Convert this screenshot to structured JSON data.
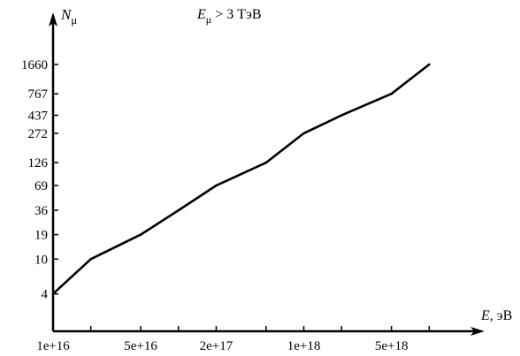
{
  "chart_data": {
    "type": "line",
    "title": "E_μ > 3 ТэВ",
    "title_parts": {
      "var": "E",
      "sub": "μ",
      "rest": " > 3 ТэВ"
    },
    "xlabel": "E, эВ",
    "xlabel_parts": {
      "var": "E",
      "rest": ", эВ"
    },
    "ylabel": "N_μ",
    "ylabel_parts": {
      "var": "N",
      "sub": "μ"
    },
    "x_ticks": [
      "1e+16",
      "5e+16",
      "2e+17",
      "1e+18",
      "5e+18"
    ],
    "x_tick_values": [
      1e+16,
      5e+16,
      2e+17,
      1e+18,
      5e+18
    ],
    "y_ticks": [
      "4",
      "10",
      "19",
      "36",
      "69",
      "126",
      "272",
      "437",
      "767",
      "1660"
    ],
    "y_tick_values": [
      4,
      10,
      19,
      36,
      69,
      126,
      272,
      437,
      767,
      1660
    ],
    "x_scale": "log",
    "y_scale": "log",
    "xlim": [
      1e+16,
      2e+19
    ],
    "ylim": [
      1.5,
      4500
    ],
    "grid": false,
    "series": [
      {
        "x": [
          1e+16,
          2e+16,
          5e+16,
          1e+17,
          2e+17,
          5e+17,
          1e+18,
          2e+18,
          5e+18,
          1e+19
        ],
        "y": [
          4,
          10,
          19,
          36,
          69,
          126,
          272,
          437,
          767,
          1660
        ]
      }
    ]
  }
}
